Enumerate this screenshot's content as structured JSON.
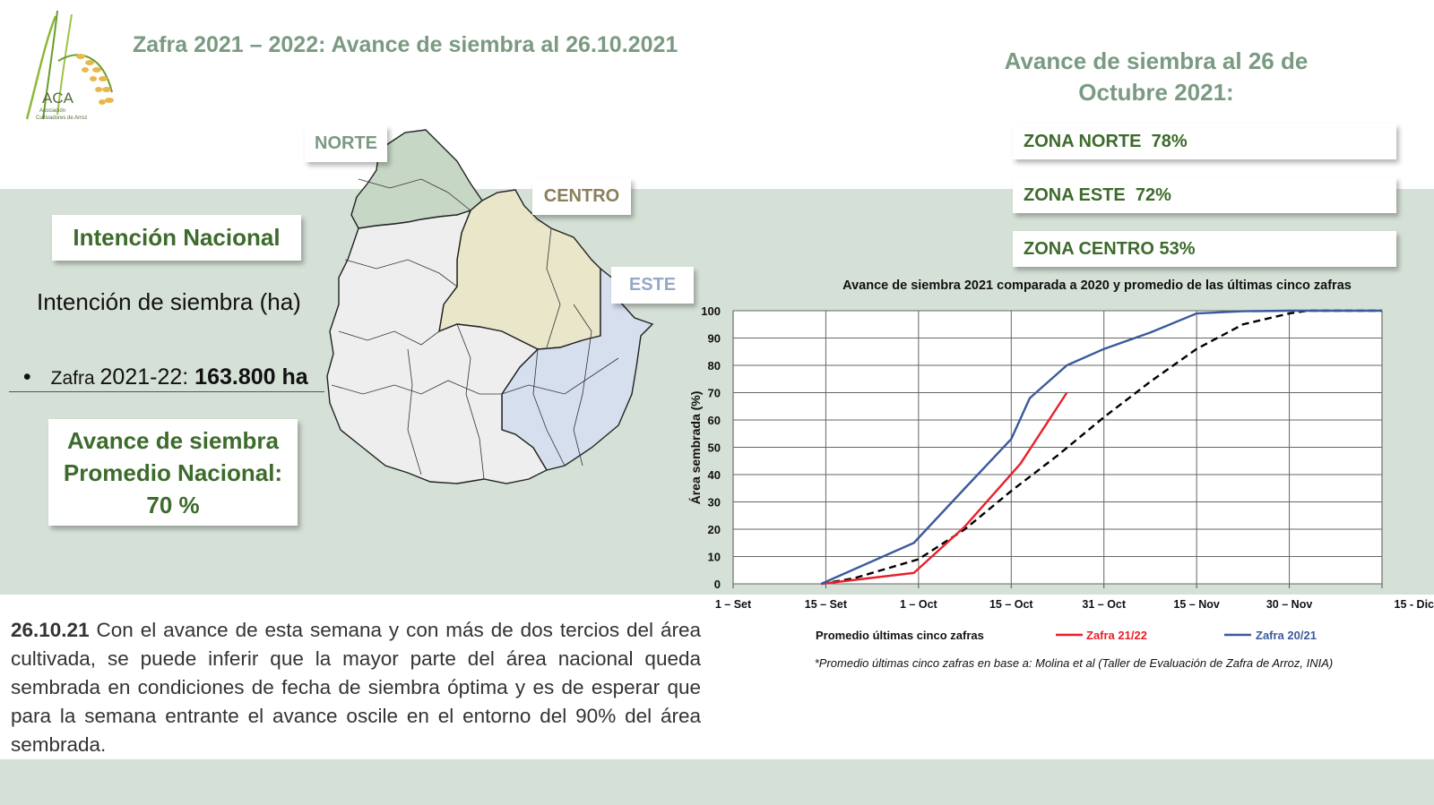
{
  "header": {
    "title": "Zafra 2021 – 2022: Avance de siembra al 26.10.2021",
    "logo_text": "ACA",
    "logo_sub1": "Asociación",
    "logo_sub2": "Cultivadores de Arroz"
  },
  "right_title": {
    "line1": "Avance de siembra al 26 de",
    "line2": "Octubre 2021:"
  },
  "zones": [
    {
      "label": "ZONA NORTE  78%"
    },
    {
      "label": "ZONA ESTE  72%"
    },
    {
      "label": "ZONA CENTRO 53%"
    }
  ],
  "map_labels": {
    "norte": "NORTE",
    "centro": "CENTRO",
    "este": "ESTE"
  },
  "left": {
    "intencion_box": "Intención Nacional",
    "intencion_heading": "Intención de siembra (ha)",
    "bullet": "•",
    "zafra_prefix": "Zafra ",
    "zafra_year": "2021-22: ",
    "zafra_value": "163.800 ha",
    "avance_line1": "Avance de siembra",
    "avance_line2": "Promedio Nacional:",
    "avance_line3": "70 %"
  },
  "paragraph": {
    "date": "26.10.21",
    "text": " Con el avance de esta semana y con más de dos tercios del área cultivada, se puede inferir que la mayor parte del área nacional queda sembrada en condiciones de fecha de siembra óptima y es de esperar que para la semana entrante el avance oscile en el entorno del 90% del área sembrada."
  },
  "colors": {
    "band": "#d5e0d6",
    "dark_green": "#3d6b2c",
    "sage": "#7a9a82",
    "norte_fill": "#c6d7c6",
    "centro_fill": "#e9e6c9",
    "este_fill": "#d6dfee",
    "red": "#e8202a",
    "blue": "#3a5a9c"
  },
  "chart_data": {
    "type": "line",
    "title": "Avance de siembra 2021 comparada a 2020 y promedio de las últimas cinco  zafras",
    "ylabel": "Área sembrada (%)",
    "xlabel": "",
    "categories": [
      "1 – Set",
      "15 – Set",
      "1 – Oct",
      "15 – Oct",
      "31 – Oct",
      "15 – Nov",
      "30 – Nov",
      "15 - Dic"
    ],
    "ylim": [
      0,
      100
    ],
    "yticks": [
      "0",
      "10",
      "20",
      "30",
      "40",
      "50",
      "60",
      "70",
      "80",
      "90",
      "100"
    ],
    "grid": true,
    "legend_position": "bottom",
    "series": [
      {
        "name": "Promedio últimas cinco zafras",
        "color": "#000000",
        "dash": true,
        "x": [
          0.95,
          1.3,
          1.6,
          2.0,
          2.5,
          3.0,
          3.5,
          4.0,
          4.5,
          5.0,
          5.5,
          6.0,
          6.2,
          7.0
        ],
        "y": [
          0,
          2,
          5,
          9,
          20,
          34,
          47,
          61,
          74,
          86,
          95,
          99,
          100,
          100
        ]
      },
      {
        "name": "Zafra 21/22",
        "color": "#e8202a",
        "dash": false,
        "x": [
          0.95,
          1.95,
          2.5,
          3.1,
          3.6
        ],
        "y": [
          0,
          4,
          21,
          44,
          70
        ]
      },
      {
        "name": "Zafra 20/21",
        "color": "#3a5a9c",
        "dash": false,
        "x": [
          0.95,
          1.95,
          2.5,
          3.0,
          3.2,
          3.6,
          4.0,
          4.5,
          5.0,
          5.5,
          6.0,
          7.0
        ],
        "y": [
          0,
          15,
          35,
          53,
          68,
          80,
          86,
          92,
          99,
          99.8,
          100,
          100
        ]
      }
    ],
    "footnote": "*Promedio últimas cinco zafras en base a: Molina et al (Taller de Evaluación de Zafra de Arroz, INIA)"
  }
}
